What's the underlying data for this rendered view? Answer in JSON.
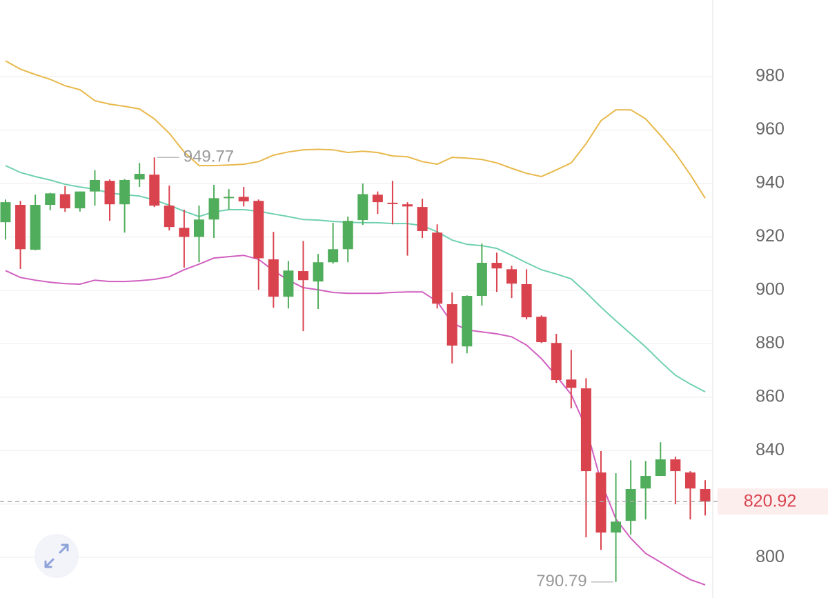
{
  "chart_data": {
    "type": "candlestick",
    "up_color": "#4fad5b",
    "down_color": "#d9434e",
    "grid": true,
    "ylim": [
      784.8,
      1008.7
    ],
    "yticks": [
      800,
      820,
      840,
      860,
      880,
      900,
      920,
      940,
      960,
      980
    ],
    "open": [
      925.5,
      932.0,
      915.2,
      932.0,
      936.0,
      930.7,
      937.0,
      941.0,
      932.2,
      941.5,
      943.3,
      931.7,
      923.4,
      920.0,
      926.5,
      934.5,
      935.0,
      933.5,
      911.6,
      897.6,
      907.2,
      903.3,
      910.5,
      915.4,
      926.3,
      935.8,
      932.8,
      932.2,
      931.2,
      921.6,
      894.8,
      879.0,
      897.9,
      910.3,
      907.9,
      902.3,
      890.1,
      880.3,
      866.6,
      863.3,
      831.8,
      809.3,
      813.7,
      825.8,
      830.5,
      836.7,
      831.8,
      825.6
    ],
    "high": [
      934.0,
      933.5,
      935.8,
      936.5,
      939.0,
      937.0,
      945.0,
      941.5,
      941.7,
      947.7,
      949.77,
      939.2,
      930.2,
      931.7,
      939.5,
      937.9,
      938.7,
      934.0,
      921.9,
      911.0,
      918.5,
      913.6,
      925.3,
      927.6,
      940.0,
      937.0,
      941.0,
      933.0,
      934.3,
      924.7,
      899.2,
      898.1,
      917.5,
      914.1,
      909.2,
      907.9,
      890.6,
      883.7,
      877.7,
      867.1,
      839.8,
      831.5,
      836.4,
      836.1,
      843.1,
      837.7,
      832.3,
      828.9
    ],
    "low": [
      919.0,
      908.0,
      915.0,
      930.0,
      929.4,
      929.5,
      931.7,
      926.0,
      921.6,
      938.7,
      931.2,
      922.4,
      908.5,
      910.5,
      919.6,
      930.2,
      931.4,
      900.2,
      893.5,
      893.2,
      884.7,
      893.0,
      910.0,
      910.5,
      924.5,
      928.6,
      924.7,
      913.0,
      919.6,
      893.2,
      872.6,
      876.4,
      894.3,
      899.4,
      897.1,
      889.1,
      880.3,
      865.3,
      855.8,
      807.5,
      802.8,
      790.79,
      808.5,
      814.2,
      830.5,
      819.9,
      814.2,
      815.7
    ],
    "close": [
      933.0,
      915.4,
      932.0,
      936.3,
      930.7,
      937.0,
      941.3,
      932.2,
      941.3,
      943.6,
      931.7,
      923.7,
      920.0,
      926.5,
      934.5,
      935.0,
      933.3,
      912.0,
      897.6,
      907.4,
      903.8,
      910.5,
      915.4,
      926.0,
      936.0,
      933.0,
      932.5,
      931.4,
      922.2,
      895.0,
      879.3,
      897.9,
      910.3,
      908.2,
      902.5,
      889.9,
      880.6,
      866.4,
      863.5,
      832.3,
      809.3,
      813.4,
      825.6,
      830.5,
      836.7,
      832.3,
      825.8,
      820.92
    ],
    "lines": [
      {
        "color": "#e8b84a",
        "values": [
          985.9,
          982.8,
          980.8,
          979.0,
          976.6,
          975.1,
          971.0,
          969.7,
          968.9,
          967.9,
          964.2,
          958.8,
          951.8,
          946.7,
          946.7,
          946.9,
          947.2,
          948.2,
          950.6,
          951.8,
          952.6,
          952.8,
          952.6,
          951.6,
          952.1,
          951.6,
          950.3,
          950.0,
          948.2,
          947.2,
          949.8,
          949.5,
          949.0,
          947.7,
          945.7,
          943.8,
          942.6,
          945.1,
          947.7,
          954.9,
          963.5,
          967.6,
          967.6,
          964.2,
          958.0,
          951.3,
          943.3,
          934.5
        ]
      },
      {
        "color": "#6fd0b0",
        "values": [
          946.7,
          944.1,
          942.6,
          941.3,
          939.7,
          938.7,
          937.9,
          936.4,
          935.8,
          935.3,
          933.8,
          931.9,
          929.6,
          927.6,
          929.4,
          930.2,
          930.2,
          929.6,
          928.6,
          927.6,
          926.5,
          926.3,
          925.8,
          925.5,
          925.3,
          925.3,
          925.0,
          925.0,
          924.2,
          921.9,
          918.8,
          917.2,
          916.7,
          915.7,
          913.1,
          910.3,
          907.7,
          906.1,
          904.3,
          899.2,
          893.7,
          888.6,
          883.7,
          878.8,
          873.3,
          868.2,
          864.9,
          862.0
        ]
      },
      {
        "color": "#d05fbf",
        "values": [
          907.4,
          904.8,
          903.8,
          903.0,
          902.5,
          902.3,
          903.8,
          903.3,
          903.3,
          903.6,
          904.1,
          905.1,
          907.7,
          909.8,
          912.1,
          912.6,
          913.1,
          911.6,
          907.4,
          903.8,
          901.0,
          900.2,
          899.2,
          898.9,
          898.9,
          898.9,
          899.2,
          899.4,
          899.4,
          895.8,
          887.8,
          885.2,
          884.4,
          883.7,
          882.6,
          879.5,
          874.4,
          867.9,
          861.0,
          848.5,
          828.4,
          814.4,
          807.2,
          801.5,
          798.2,
          794.8,
          791.7,
          789.7
        ]
      }
    ]
  }
}
